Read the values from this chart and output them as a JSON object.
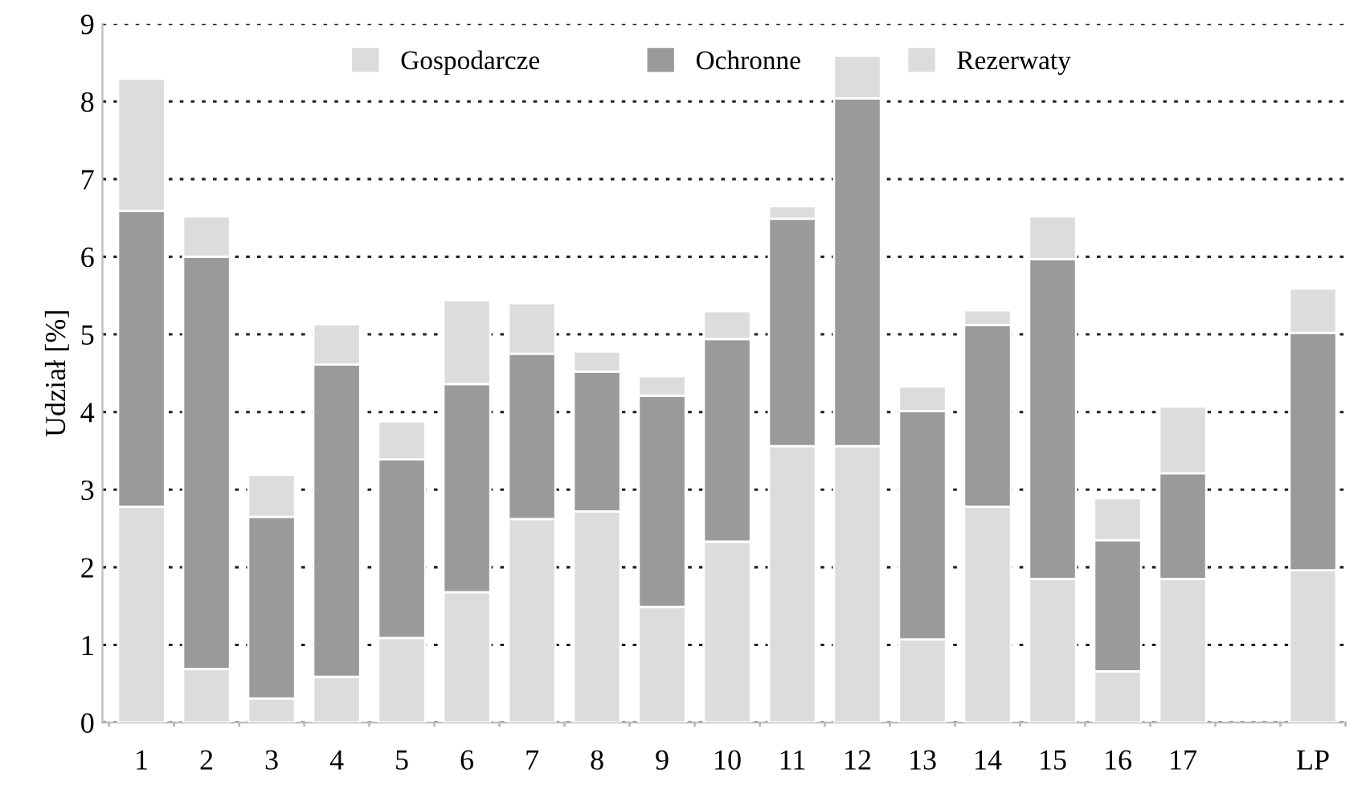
{
  "chart_data": {
    "type": "bar",
    "stacked": true,
    "ylabel": "Udział [%]",
    "categories": [
      "1",
      "2",
      "3",
      "4",
      "5",
      "6",
      "7",
      "8",
      "9",
      "10",
      "11",
      "12",
      "13",
      "14",
      "15",
      "16",
      "17",
      null,
      "LP"
    ],
    "series": [
      {
        "name": "Gospodarcze",
        "color": "#dcdcdc",
        "values": [
          2.78,
          0.69,
          0.31,
          0.59,
          1.09,
          1.68,
          2.62,
          2.72,
          1.49,
          2.33,
          3.56,
          3.56,
          1.07,
          2.78,
          1.85,
          0.66,
          1.85,
          null,
          1.96
        ]
      },
      {
        "name": "Ochronne",
        "color": "#9a9a9a",
        "values": [
          3.81,
          5.31,
          2.34,
          4.02,
          2.3,
          2.68,
          2.13,
          1.8,
          2.72,
          2.61,
          2.93,
          4.48,
          2.94,
          2.34,
          4.12,
          1.69,
          1.36,
          null,
          3.06
        ]
      },
      {
        "name": "Rezerwaty",
        "color": "#dcdcdc",
        "values": [
          1.7,
          0.52,
          0.54,
          0.52,
          0.49,
          1.08,
          0.65,
          0.26,
          0.25,
          0.36,
          0.16,
          0.55,
          0.32,
          0.19,
          0.55,
          0.54,
          0.86,
          null,
          0.57
        ]
      }
    ],
    "ylim": [
      0,
      9
    ],
    "yticks": [
      0,
      1,
      2,
      3,
      4,
      5,
      6,
      7,
      8,
      9
    ],
    "grid": "y",
    "legend": "top"
  }
}
